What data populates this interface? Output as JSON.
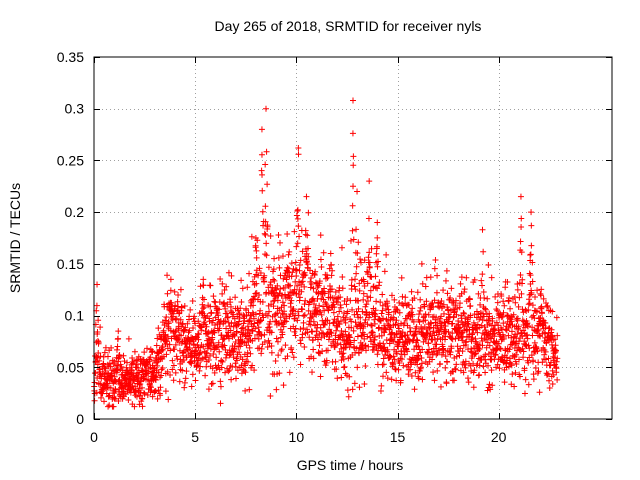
{
  "chart_data": {
    "type": "scatter",
    "title": "Day 265 of 2018, SRMTID for receiver nyls",
    "xlabel": "GPS time / hours",
    "ylabel": "SRMTID / TECUs",
    "xlim": [
      0,
      25.6
    ],
    "ylim": [
      0,
      0.35
    ],
    "x_ticks": [
      0,
      5,
      10,
      15,
      20
    ],
    "x_tick_labels": [
      "0",
      "5",
      "10",
      "15",
      "20"
    ],
    "y_ticks": [
      0,
      0.05,
      0.1,
      0.15,
      0.2,
      0.25,
      0.3,
      0.35
    ],
    "y_tick_labels": [
      "0",
      "0.05",
      "0.1",
      "0.15",
      "0.2",
      "0.25",
      "0.3",
      "0.35"
    ],
    "grid": true,
    "marker": "+",
    "color": "#ff0000",
    "series": [
      {
        "name": "SRMTID",
        "x_range": [
          0,
          22.9
        ],
        "n_points": 2700,
        "baseline": [
          [
            0,
            0.045
          ],
          [
            1,
            0.035
          ],
          [
            2,
            0.038
          ],
          [
            3,
            0.045
          ],
          [
            3.5,
            0.075
          ],
          [
            4,
            0.085
          ],
          [
            5,
            0.065
          ],
          [
            6,
            0.08
          ],
          [
            7,
            0.075
          ],
          [
            8,
            0.09
          ],
          [
            9,
            0.1
          ],
          [
            10,
            0.115
          ],
          [
            11,
            0.105
          ],
          [
            12,
            0.09
          ],
          [
            12.7,
            0.075
          ],
          [
            13.2,
            0.095
          ],
          [
            14,
            0.085
          ],
          [
            15,
            0.075
          ],
          [
            16,
            0.08
          ],
          [
            17,
            0.085
          ],
          [
            18,
            0.085
          ],
          [
            19,
            0.075
          ],
          [
            20,
            0.08
          ],
          [
            21,
            0.075
          ],
          [
            22,
            0.08
          ],
          [
            22.9,
            0.06
          ]
        ],
        "peaks": [
          {
            "x": 0.15,
            "y": 0.13
          },
          {
            "x": 1.2,
            "y": 0.085
          },
          {
            "x": 3.8,
            "y": 0.135
          },
          {
            "x": 5.4,
            "y": 0.135
          },
          {
            "x": 8.0,
            "y": 0.175
          },
          {
            "x": 8.3,
            "y": 0.28
          },
          {
            "x": 8.5,
            "y": 0.3
          },
          {
            "x": 8.9,
            "y": 0.155
          },
          {
            "x": 10.1,
            "y": 0.262
          },
          {
            "x": 10.5,
            "y": 0.215
          },
          {
            "x": 11.7,
            "y": 0.16
          },
          {
            "x": 12.8,
            "y": 0.308
          },
          {
            "x": 13.0,
            "y": 0.22
          },
          {
            "x": 13.6,
            "y": 0.23
          },
          {
            "x": 14.0,
            "y": 0.19
          },
          {
            "x": 19.2,
            "y": 0.183
          },
          {
            "x": 21.1,
            "y": 0.215
          },
          {
            "x": 21.6,
            "y": 0.2
          }
        ]
      }
    ]
  }
}
